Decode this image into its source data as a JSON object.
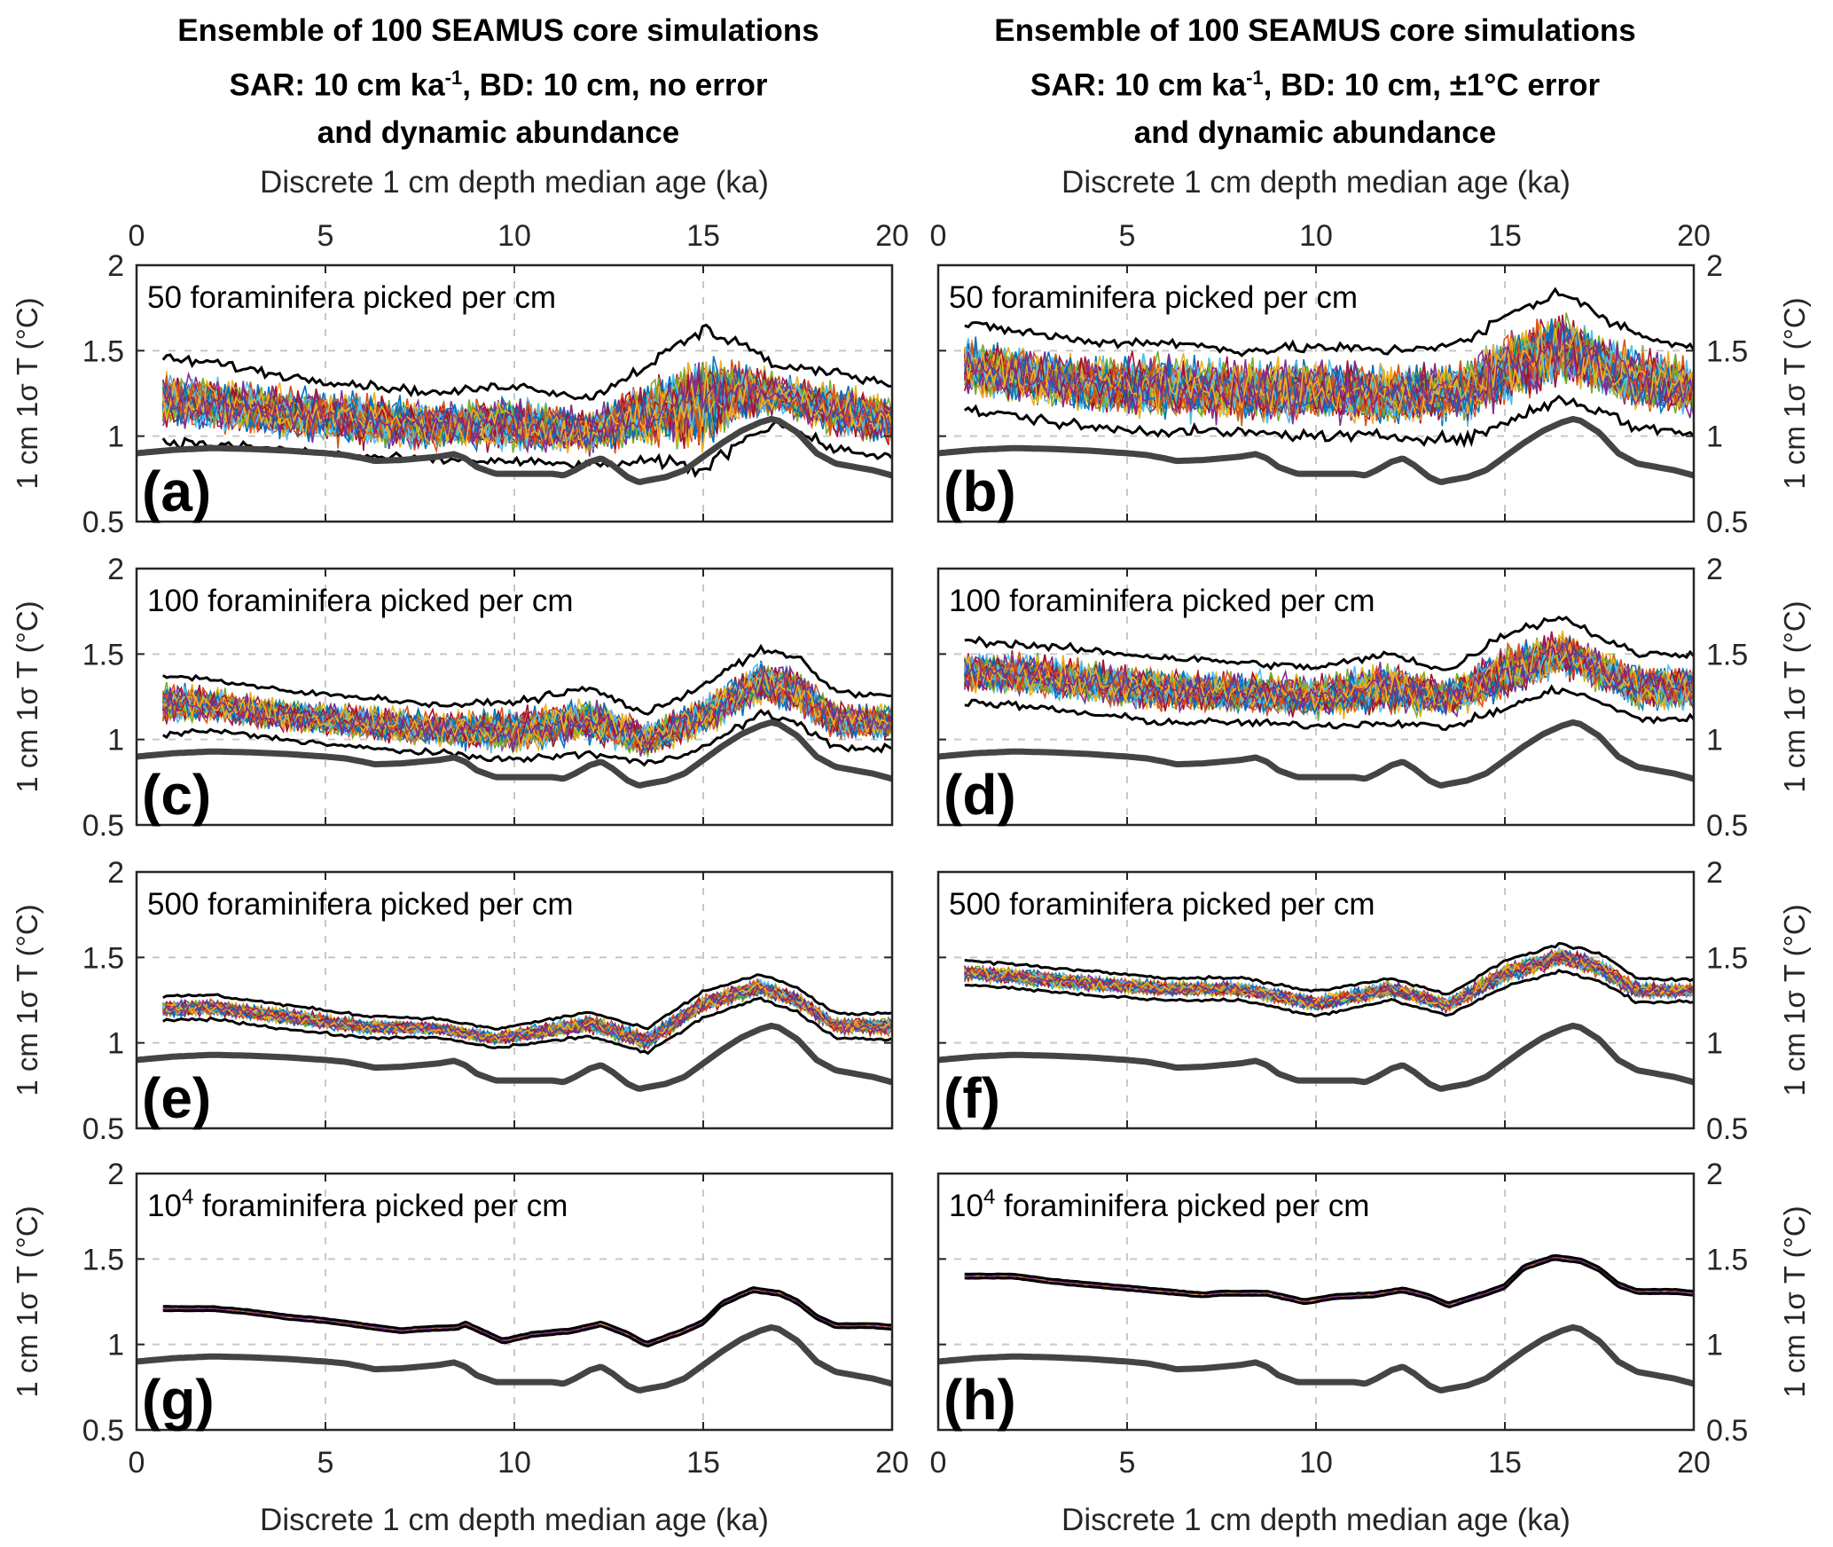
{
  "figure": {
    "columns": [
      {
        "title_line1": "Ensemble of 100 SEAMUS core simulations",
        "title_line2_pre": "SAR: 10 cm ka",
        "title_line2_sup": "-1",
        "title_line2_post": ", BD: 10 cm, no error",
        "title_line3": "and dynamic abundance"
      },
      {
        "title_line1": "Ensemble of 100 SEAMUS core simulations",
        "title_line2_pre": "SAR: 10 cm ka",
        "title_line2_sup": "-1",
        "title_line2_post": ", BD: 10 cm, ±1°C error",
        "title_line3": "and dynamic abundance"
      }
    ],
    "x_axis_label": "Discrete 1 cm depth median age (ka)",
    "y_axis_label": "1 cm 1σ T (°C)"
  },
  "chart_data": {
    "type": "line",
    "layout": "4 rows x 2 columns; left column y-axis on left, right column y-axis on right; x tick labels on top row (top) and bottom row (bottom)",
    "xlabel": "Discrete 1 cm depth median age (ka)",
    "ylabel": "1 cm 1σ T (°C)",
    "xlim": [
      0,
      20
    ],
    "ylim": [
      0.5,
      2
    ],
    "x_ticks": [
      0,
      5,
      10,
      15,
      20
    ],
    "y_ticks": [
      0.5,
      1,
      1.5,
      2
    ],
    "y_tick_labels": [
      "0.5",
      "1",
      "1.5",
      "2"
    ],
    "x_tick_labels": [
      "0",
      "5",
      "10",
      "15",
      "20"
    ],
    "grid": true,
    "ensemble_size": 100,
    "ensemble_colors": [
      "#0072BD",
      "#D95319",
      "#EDB120",
      "#7E2F8E",
      "#77AC30",
      "#4DBEEE",
      "#A2142F"
    ],
    "reference_series": {
      "name": "reference (thick grey)",
      "color": "#444444",
      "x": [
        0,
        0.5,
        1,
        1.5,
        2,
        3,
        4,
        5,
        5.5,
        6,
        6.3,
        7,
        7.5,
        8,
        8.4,
        8.7,
        9,
        9.5,
        10,
        10.5,
        11,
        11.3,
        11.6,
        12,
        12.3,
        12.6,
        13,
        13.3,
        13.5,
        14,
        14.5,
        15,
        15.5,
        16,
        16.5,
        16.8,
        17,
        17.5,
        18,
        18.5,
        19,
        19.5,
        20
      ],
      "y": [
        0.9,
        0.91,
        0.92,
        0.925,
        0.93,
        0.925,
        0.915,
        0.9,
        0.89,
        0.87,
        0.855,
        0.86,
        0.87,
        0.88,
        0.895,
        0.87,
        0.82,
        0.78,
        0.78,
        0.78,
        0.78,
        0.77,
        0.8,
        0.85,
        0.87,
        0.83,
        0.76,
        0.73,
        0.74,
        0.76,
        0.8,
        0.88,
        0.96,
        1.03,
        1.08,
        1.1,
        1.09,
        1.02,
        0.9,
        0.84,
        0.82,
        0.8,
        0.77
      ]
    },
    "panels": [
      {
        "label": "(a)",
        "annotation": "50 foraminifera picked per cm",
        "annotation_sup": "",
        "column": 0,
        "row": 0,
        "x_start": 0.7,
        "center_offset": 0.3,
        "half_width": 0.22,
        "noise": 0.12,
        "upper_bound": [
          1.45,
          1.43,
          1.35,
          1.3,
          1.25,
          1.3,
          1.22,
          1.48,
          1.62,
          1.55,
          1.4,
          1.38,
          1.3
        ],
        "lower_bound": [
          0.97,
          0.95,
          0.92,
          0.88,
          0.86,
          0.85,
          0.83,
          0.85,
          0.8,
          0.98,
          1.08,
          0.92,
          0.88
        ],
        "bound_x": [
          0.7,
          2,
          4,
          6,
          8,
          10,
          12,
          14,
          15,
          16,
          17,
          18.5,
          20
        ]
      },
      {
        "label": "(b)",
        "annotation": "50 foraminifera picked per cm",
        "annotation_sup": "",
        "column": 1,
        "row": 0,
        "x_start": 0.7,
        "center_offset": 0.45,
        "half_width": 0.32,
        "noise": 0.15,
        "upper_bound": [
          1.65,
          1.62,
          1.55,
          1.55,
          1.5,
          1.52,
          1.5,
          1.55,
          1.7,
          1.85,
          1.7,
          1.6,
          1.52
        ],
        "lower_bound": [
          1.15,
          1.12,
          1.05,
          1.03,
          1.02,
          1.0,
          1.0,
          0.98,
          1.08,
          1.22,
          1.15,
          1.05,
          1.02
        ],
        "bound_x": [
          0.7,
          2,
          4,
          6,
          8,
          10,
          12,
          14,
          15,
          16.5,
          17.5,
          18.5,
          20
        ]
      },
      {
        "label": "(c)",
        "annotation": "100 foraminifera picked per cm",
        "annotation_sup": "",
        "column": 0,
        "row": 1,
        "x_start": 0.7,
        "center_offset": 0.25,
        "half_width": 0.16,
        "noise": 0.09,
        "upper_bound": [
          1.38,
          1.35,
          1.28,
          1.25,
          1.2,
          1.22,
          1.3,
          1.15,
          1.32,
          1.52,
          1.48,
          1.28,
          1.25
        ],
        "lower_bound": [
          1.03,
          1.05,
          1.0,
          0.95,
          0.92,
          0.88,
          0.92,
          0.86,
          0.95,
          1.15,
          1.1,
          0.95,
          0.95
        ],
        "bound_x": [
          0.7,
          2,
          4,
          6,
          8,
          10,
          12,
          13.5,
          15,
          16.5,
          17.5,
          18.5,
          20
        ]
      },
      {
        "label": "(d)",
        "annotation": "100 foraminifera picked per cm",
        "annotation_sup": "",
        "column": 1,
        "row": 1,
        "x_start": 0.7,
        "center_offset": 0.42,
        "half_width": 0.2,
        "noise": 0.11,
        "upper_bound": [
          1.58,
          1.56,
          1.52,
          1.48,
          1.45,
          1.42,
          1.5,
          1.4,
          1.62,
          1.72,
          1.6,
          1.5,
          1.5
        ],
        "lower_bound": [
          1.22,
          1.2,
          1.15,
          1.1,
          1.1,
          1.08,
          1.1,
          1.07,
          1.18,
          1.3,
          1.22,
          1.12,
          1.12
        ],
        "bound_x": [
          0.7,
          2,
          4,
          6,
          8,
          10,
          12,
          13.5,
          15,
          16.5,
          17.5,
          18.5,
          20
        ]
      },
      {
        "label": "(e)",
        "annotation": "500 foraminifera picked per cm",
        "annotation_sup": "",
        "column": 0,
        "row": 2,
        "x_start": 0.7,
        "center_offset": 0.27,
        "half_width": 0.07,
        "noise": 0.04,
        "upper_bound": [
          1.27,
          1.28,
          1.22,
          1.16,
          1.14,
          1.08,
          1.18,
          1.08,
          1.3,
          1.4,
          1.32,
          1.17,
          1.17
        ],
        "lower_bound": [
          1.13,
          1.14,
          1.08,
          1.03,
          1.03,
          0.97,
          1.04,
          0.94,
          1.15,
          1.26,
          1.18,
          1.03,
          1.02
        ],
        "bound_x": [
          0.7,
          2,
          4,
          6,
          8,
          9.5,
          12,
          13.5,
          15,
          16.5,
          17.5,
          18.5,
          20
        ]
      },
      {
        "label": "(f)",
        "annotation": "500 foraminifera picked per cm",
        "annotation_sup": "",
        "column": 1,
        "row": 2,
        "x_start": 0.7,
        "center_offset": 0.42,
        "half_width": 0.07,
        "noise": 0.04,
        "upper_bound": [
          1.48,
          1.46,
          1.42,
          1.38,
          1.38,
          1.3,
          1.38,
          1.28,
          1.48,
          1.58,
          1.52,
          1.38,
          1.37
        ],
        "lower_bound": [
          1.34,
          1.32,
          1.28,
          1.25,
          1.25,
          1.16,
          1.25,
          1.16,
          1.33,
          1.42,
          1.36,
          1.24,
          1.24
        ],
        "bound_x": [
          0.7,
          2,
          4,
          6,
          8,
          10,
          12,
          13.5,
          15,
          16.5,
          17.5,
          18.5,
          20
        ]
      },
      {
        "label": "(g)",
        "annotation": "10",
        "annotation_sup": "4",
        "annotation_post": " foraminifera picked per cm",
        "column": 0,
        "row": 3,
        "x_start": 0.7,
        "center_offset": 0.28,
        "half_width": 0.012,
        "noise": 0.006,
        "upper_bound": [],
        "lower_bound": [],
        "bound_x": [],
        "mean_x": [
          0.7,
          2,
          3,
          4,
          5,
          6,
          7,
          7.5,
          8.5,
          8.7,
          9.7,
          10.5,
          11.5,
          12.3,
          13,
          13.5,
          14.5,
          15,
          15.5,
          16.3,
          17,
          17.5,
          18,
          18.5,
          19.5,
          20
        ],
        "mean_y": [
          1.21,
          1.21,
          1.19,
          1.16,
          1.14,
          1.11,
          1.08,
          1.09,
          1.1,
          1.12,
          1.02,
          1.06,
          1.08,
          1.12,
          1.06,
          1.0,
          1.08,
          1.13,
          1.24,
          1.32,
          1.3,
          1.25,
          1.16,
          1.11,
          1.11,
          1.1
        ]
      },
      {
        "label": "(h)",
        "annotation": "10",
        "annotation_sup": "4",
        "annotation_post": " foraminifera picked per cm",
        "column": 1,
        "row": 3,
        "x_start": 0.7,
        "center_offset": 0.42,
        "half_width": 0.012,
        "noise": 0.006,
        "upper_bound": [],
        "lower_bound": [],
        "bound_x": [],
        "mean_x": [
          0.7,
          2,
          3,
          4,
          5,
          6,
          7,
          7.5,
          8.5,
          8.7,
          9.7,
          10.5,
          11.5,
          12.3,
          13,
          13.5,
          14.5,
          15,
          15.5,
          16.3,
          17,
          17.5,
          18,
          18.5,
          19.5,
          20
        ],
        "mean_y": [
          1.4,
          1.4,
          1.37,
          1.35,
          1.33,
          1.31,
          1.29,
          1.3,
          1.3,
          1.3,
          1.25,
          1.28,
          1.29,
          1.32,
          1.28,
          1.23,
          1.3,
          1.34,
          1.45,
          1.51,
          1.49,
          1.44,
          1.35,
          1.31,
          1.31,
          1.3
        ]
      }
    ]
  }
}
